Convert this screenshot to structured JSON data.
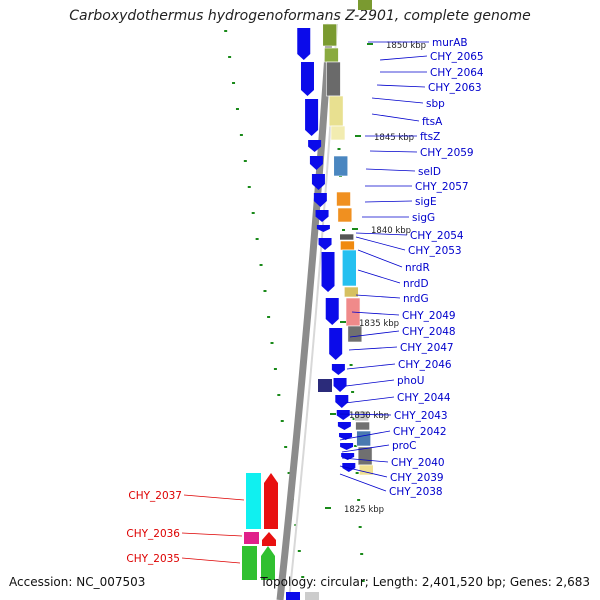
{
  "title": "Carboxydothermus hydrogenoformans Z-2901, complete genome",
  "footer": {
    "accession": "Accession: NC_007503",
    "topology": "Topology: circular; Length: 2,401,520 bp; Genes: 2,683"
  },
  "colors": {
    "backbone_gray": "#8c8c8c",
    "fwd_gene": "#0b0bea",
    "label_blue": "#0000cc",
    "label_red": "#dd0000",
    "tick_green": "#1a8a1a"
  },
  "kbp_marks": [
    "1850 kbp",
    "1845 kbp",
    "1840 kbp",
    "1835 kbp",
    "1830 kbp",
    "1825 kbp"
  ],
  "right_labels": [
    "murAB",
    "CHY_2065",
    "CHY_2064",
    "CHY_2063",
    "sbp",
    "ftsA",
    "ftsZ",
    "CHY_2059",
    "selD",
    "CHY_2057",
    "sigE",
    "sigG",
    "CHY_2054",
    "CHY_2053",
    "nrdR",
    "nrdD",
    "nrdG",
    "CHY_2049",
    "CHY_2048",
    "CHY_2047",
    "CHY_2046",
    "phoU",
    "CHY_2044",
    "CHY_2043",
    "CHY_2042",
    "proC",
    "CHY_2040",
    "CHY_2039",
    "CHY_2038"
  ],
  "left_labels": [
    "CHY_2037",
    "CHY_2036",
    "CHY_2035"
  ]
}
